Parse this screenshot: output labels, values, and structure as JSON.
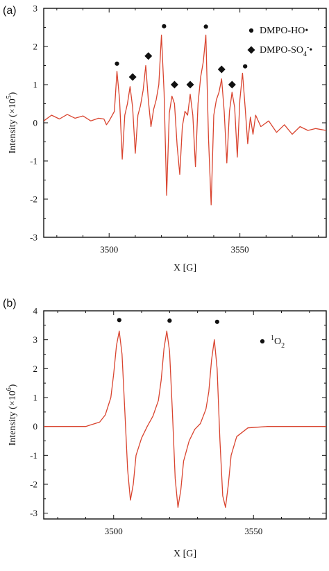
{
  "colors": {
    "trace": "#d9442f",
    "axis": "#111111",
    "marker": "#111111"
  },
  "chart_data": [
    {
      "panel_label": "(a)",
      "type": "line",
      "xlabel": "X [G]",
      "ylabel": {
        "base": "Intensity (×10",
        "exp": "5",
        "tail": ")"
      },
      "xlim": [
        3475,
        3583
      ],
      "ylim": [
        -3,
        3
      ],
      "xticks": [
        3500,
        3550
      ],
      "yticks": [
        -3,
        -2,
        -1,
        0,
        1,
        2,
        3
      ],
      "grid": false,
      "legend_position": "top-right",
      "legend": [
        {
          "symbol": "circle",
          "parts": [
            {
              "t": "DMPO-HO•"
            }
          ]
        },
        {
          "symbol": "diamond",
          "parts": [
            {
              "t": "DMPO-SO"
            },
            {
              "t": "4",
              "s": "sub"
            },
            {
              "t": "-",
              "s": "sup"
            },
            {
              "t": "•"
            }
          ]
        }
      ],
      "series": [
        {
          "x": [
            3475,
            3478,
            3481,
            3484,
            3487,
            3490,
            3493,
            3496,
            3498,
            3499,
            3500,
            3502,
            3503,
            3504,
            3505,
            3506,
            3507,
            3508,
            3509,
            3510,
            3511,
            3512,
            3513,
            3514,
            3515,
            3516,
            3517,
            3518,
            3519,
            3520,
            3521,
            3522,
            3523,
            3524,
            3525,
            3526,
            3527,
            3528,
            3529,
            3530,
            3531,
            3532,
            3533,
            3534,
            3535,
            3536,
            3537,
            3538,
            3539,
            3540,
            3541,
            3542,
            3543,
            3544,
            3545,
            3546,
            3547,
            3548,
            3549,
            3550,
            3551,
            3552,
            3553,
            3554,
            3555,
            3556,
            3558,
            3561,
            3564,
            3567,
            3570,
            3573,
            3576,
            3579,
            3583
          ],
          "y": [
            0.05,
            0.2,
            0.1,
            0.22,
            0.12,
            0.18,
            0.05,
            0.12,
            0.1,
            -0.05,
            0.05,
            0.3,
            1.35,
            0.6,
            -0.95,
            0.2,
            0.5,
            0.95,
            0.4,
            -0.8,
            0.2,
            0.45,
            0.85,
            1.5,
            0.6,
            -0.1,
            0.35,
            0.6,
            1.0,
            2.3,
            0.8,
            -1.9,
            0.25,
            0.7,
            0.5,
            -0.6,
            -1.35,
            -0.1,
            0.3,
            0.2,
            0.75,
            0.2,
            -1.15,
            0.5,
            1.2,
            1.6,
            2.3,
            -0.4,
            -2.15,
            0.2,
            0.6,
            0.8,
            1.15,
            0.3,
            -1.05,
            0.3,
            0.8,
            0.4,
            -0.9,
            0.6,
            1.3,
            0.4,
            -0.55,
            0.15,
            -0.3,
            0.2,
            -0.1,
            0.05,
            -0.25,
            -0.05,
            -0.3,
            -0.1,
            -0.2,
            -0.15,
            -0.2
          ]
        }
      ],
      "markers": [
        {
          "symbol": "circle",
          "x": 3503,
          "y": 1.55
        },
        {
          "symbol": "diamond",
          "x": 3509,
          "y": 1.2
        },
        {
          "symbol": "diamond",
          "x": 3515,
          "y": 1.75
        },
        {
          "symbol": "circle",
          "x": 3521,
          "y": 2.53
        },
        {
          "symbol": "diamond",
          "x": 3525,
          "y": 1.0
        },
        {
          "symbol": "diamond",
          "x": 3531,
          "y": 1.0
        },
        {
          "symbol": "circle",
          "x": 3537,
          "y": 2.52
        },
        {
          "symbol": "diamond",
          "x": 3543,
          "y": 1.4
        },
        {
          "symbol": "diamond",
          "x": 3547,
          "y": 1.0
        },
        {
          "symbol": "circle",
          "x": 3552,
          "y": 1.48
        }
      ]
    },
    {
      "panel_label": "(b)",
      "type": "line",
      "xlabel": "X [G]",
      "ylabel": {
        "base": "Intensity (×10",
        "exp": "6",
        "tail": ")"
      },
      "xlim": [
        3475,
        3576
      ],
      "ylim": [
        -3.2,
        4
      ],
      "xticks": [
        3500,
        3550
      ],
      "yticks": [
        -3,
        -2,
        -1,
        0,
        1,
        2,
        3,
        4
      ],
      "grid": false,
      "legend_position": "top-right",
      "legend": [
        {
          "symbol": "circle",
          "parts": [
            {
              "t": "1",
              "s": "sup"
            },
            {
              "t": "O"
            },
            {
              "t": "2",
              "s": "sub"
            }
          ]
        }
      ],
      "series": [
        {
          "x": [
            3475,
            3490,
            3495,
            3497,
            3499,
            3500,
            3501,
            3502,
            3503,
            3504,
            3505,
            3506,
            3507,
            3508,
            3510,
            3512,
            3514,
            3516,
            3517,
            3518,
            3519,
            3520,
            3521,
            3522,
            3523,
            3524,
            3525,
            3527,
            3529,
            3531,
            3533,
            3534,
            3535,
            3536,
            3537,
            3538,
            3539,
            3540,
            3541,
            3542,
            3544,
            3548,
            3555,
            3576
          ],
          "y": [
            0,
            0,
            0.15,
            0.4,
            1.0,
            1.8,
            2.8,
            3.3,
            2.5,
            0.5,
            -1.5,
            -2.55,
            -2.0,
            -1.0,
            -0.4,
            0.0,
            0.35,
            0.9,
            1.6,
            2.7,
            3.3,
            2.6,
            0.5,
            -1.8,
            -2.8,
            -2.2,
            -1.2,
            -0.5,
            -0.1,
            0.1,
            0.6,
            1.2,
            2.3,
            3.0,
            2.0,
            -0.5,
            -2.4,
            -2.8,
            -2.0,
            -1.0,
            -0.35,
            -0.05,
            0,
            0
          ]
        }
      ],
      "markers": [
        {
          "symbol": "circle",
          "x": 3502,
          "y": 3.68
        },
        {
          "symbol": "circle",
          "x": 3520,
          "y": 3.66
        },
        {
          "symbol": "circle",
          "x": 3537,
          "y": 3.62
        }
      ]
    }
  ]
}
